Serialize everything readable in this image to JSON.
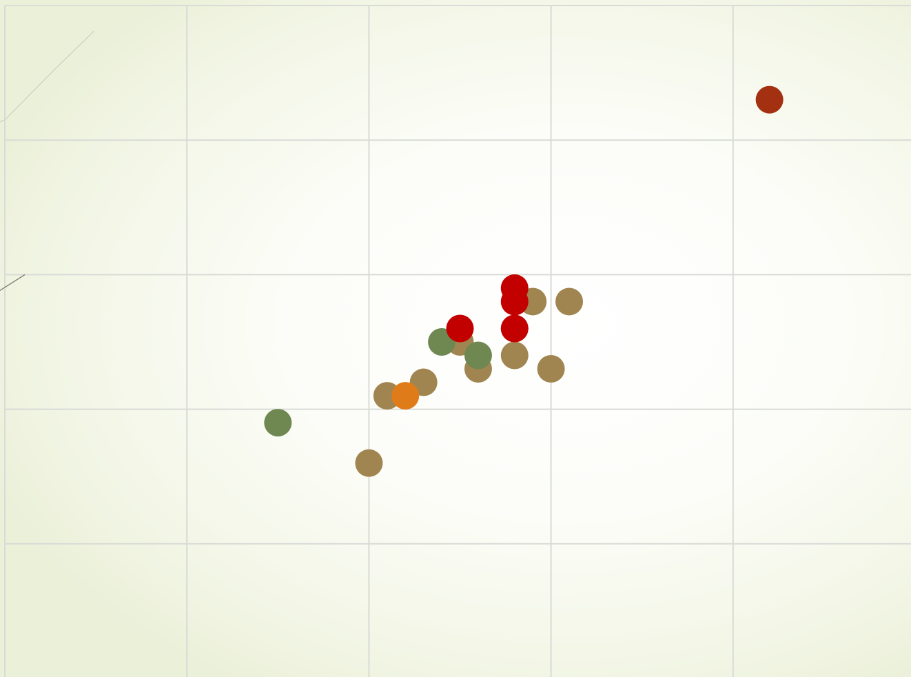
{
  "chart_data": {
    "type": "scatter",
    "title": "",
    "xlabel": "",
    "ylabel": "",
    "grid": true,
    "xlim": [
      0,
      5
    ],
    "ylim": [
      0,
      5
    ],
    "x_gridlines": [
      0,
      1,
      2,
      3,
      4,
      5
    ],
    "y_gridlines": [
      0,
      1,
      2,
      3,
      4,
      5
    ],
    "points": [
      {
        "x": 4.2,
        "y": 4.3,
        "color": "#a33011"
      },
      {
        "x": 3.1,
        "y": 2.8,
        "color": "#a18550"
      },
      {
        "x": 2.9,
        "y": 2.8,
        "color": "#a18550"
      },
      {
        "x": 2.8,
        "y": 2.6,
        "color": "#a18550"
      },
      {
        "x": 2.5,
        "y": 2.5,
        "color": "#a18550"
      },
      {
        "x": 2.8,
        "y": 2.4,
        "color": "#a18550"
      },
      {
        "x": 2.6,
        "y": 2.3,
        "color": "#a18550"
      },
      {
        "x": 3.0,
        "y": 2.3,
        "color": "#a18550"
      },
      {
        "x": 2.3,
        "y": 2.2,
        "color": "#a18550"
      },
      {
        "x": 2.1,
        "y": 2.1,
        "color": "#a18550"
      },
      {
        "x": 2.0,
        "y": 1.6,
        "color": "#a18550"
      },
      {
        "x": 2.4,
        "y": 2.5,
        "color": "#6f8751"
      },
      {
        "x": 2.6,
        "y": 2.4,
        "color": "#6f8751"
      },
      {
        "x": 1.5,
        "y": 1.9,
        "color": "#6f8751"
      },
      {
        "x": 2.2,
        "y": 2.1,
        "color": "#e07b19"
      },
      {
        "x": 2.8,
        "y": 2.9,
        "color": "#c30000"
      },
      {
        "x": 2.8,
        "y": 2.8,
        "color": "#c30000"
      },
      {
        "x": 2.5,
        "y": 2.6,
        "color": "#c30000"
      },
      {
        "x": 2.8,
        "y": 2.6,
        "color": "#c30000"
      }
    ],
    "trend_lines": [
      {
        "x": [
          -0.1,
          0.0,
          0.27,
          0.49
        ],
        "y": [
          4.1,
          4.15,
          4.52,
          4.81
        ],
        "color": "#cdd3c5"
      },
      {
        "x": [
          -0.03,
          0.11
        ],
        "y": [
          2.88,
          3.0
        ],
        "color": "#7a7a70"
      }
    ]
  }
}
